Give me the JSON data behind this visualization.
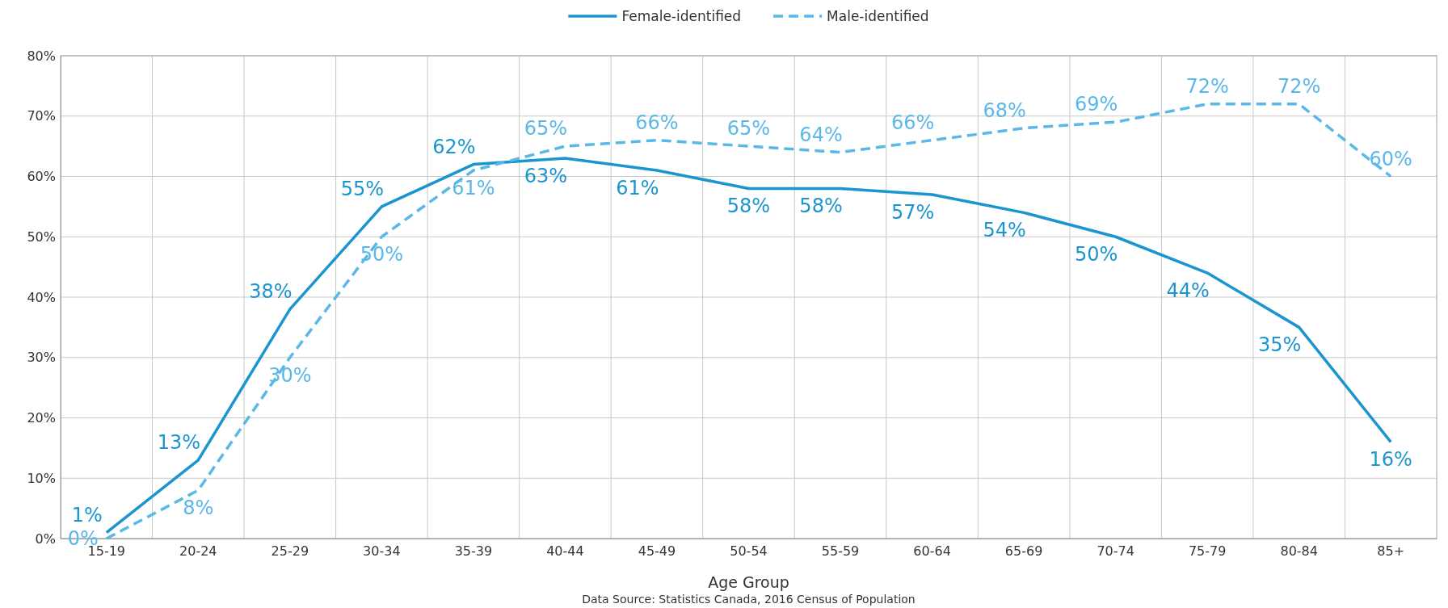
{
  "chart_data": {
    "type": "line",
    "xlabel": "Age Group",
    "categories": [
      "15-19",
      "20-24",
      "25-29",
      "30-34",
      "35-39",
      "40-44",
      "45-49",
      "50-54",
      "55-59",
      "60-64",
      "65-69",
      "70-74",
      "75-79",
      "80-84",
      "85+"
    ],
    "series": [
      {
        "name": "Female-identified",
        "color": "#1b95d0",
        "line_style": "solid",
        "values": [
          1,
          13,
          38,
          55,
          62,
          63,
          61,
          58,
          58,
          57,
          54,
          50,
          44,
          35,
          16
        ],
        "value_labels": [
          "1%",
          "13%",
          "38%",
          "55%",
          "62%",
          "63%",
          "61%",
          "58%",
          "58%",
          "57%",
          "54%",
          "50%",
          "44%",
          "35%",
          "16%"
        ]
      },
      {
        "name": "Male-identified",
        "color": "#5ab8e8",
        "line_style": "dashed",
        "values": [
          0,
          8,
          30,
          50,
          61,
          65,
          66,
          65,
          64,
          66,
          68,
          69,
          72,
          72,
          60
        ],
        "value_labels": [
          "0%",
          "8%",
          "30%",
          "50%",
          "61%",
          "65%",
          "66%",
          "65%",
          "64%",
          "66%",
          "68%",
          "69%",
          "72%",
          "72%",
          "60%"
        ]
      }
    ],
    "ylim": [
      0,
      80
    ],
    "yticks": [
      {
        "value": 0,
        "label": "0%"
      },
      {
        "value": 10,
        "label": "10%"
      },
      {
        "value": 20,
        "label": "20%"
      },
      {
        "value": 30,
        "label": "30%"
      },
      {
        "value": 40,
        "label": "40%"
      },
      {
        "value": 50,
        "label": "50%"
      },
      {
        "value": 60,
        "label": "60%"
      },
      {
        "value": 70,
        "label": "70%"
      },
      {
        "value": 80,
        "label": "80%"
      }
    ],
    "grid": true,
    "legend": "top",
    "marker": "none",
    "annotations": [
      "Data Source: Statistics Canada, 2016 Census of Population"
    ]
  }
}
